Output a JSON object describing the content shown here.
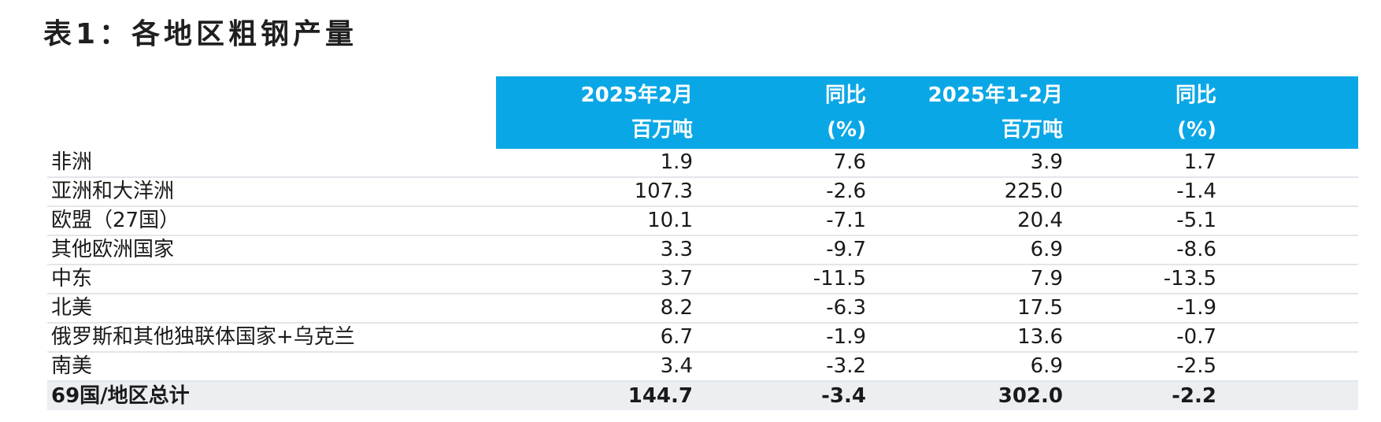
{
  "title": "表1：各地区粗钢产量",
  "header": {
    "col1": [
      "2025年2月",
      "百万吨"
    ],
    "col2": [
      "同比",
      "(%)"
    ],
    "col3": [
      "2025年1-2月",
      "百万吨"
    ],
    "col4": [
      "同比",
      "(%)"
    ]
  },
  "rows": [
    {
      "label": "非洲",
      "feb": "1.9",
      "feb_yoy": "7.6",
      "jan_feb": "3.9",
      "jan_feb_yoy": "1.7"
    },
    {
      "label": "亚洲和大洋洲",
      "feb": "107.3",
      "feb_yoy": "-2.6",
      "jan_feb": "225.0",
      "jan_feb_yoy": "-1.4"
    },
    {
      "label": "欧盟（27国）",
      "feb": "10.1",
      "feb_yoy": "-7.1",
      "jan_feb": "20.4",
      "jan_feb_yoy": "-5.1"
    },
    {
      "label": "其他欧洲国家",
      "feb": "3.3",
      "feb_yoy": "-9.7",
      "jan_feb": "6.9",
      "jan_feb_yoy": "-8.6"
    },
    {
      "label": "中东",
      "feb": "3.7",
      "feb_yoy": "-11.5",
      "jan_feb": "7.9",
      "jan_feb_yoy": "-13.5"
    },
    {
      "label": "北美",
      "feb": "8.2",
      "feb_yoy": "-6.3",
      "jan_feb": "17.5",
      "jan_feb_yoy": "-1.9"
    },
    {
      "label": "俄罗斯和其他独联体国家+乌克兰",
      "feb": "6.7",
      "feb_yoy": "-1.9",
      "jan_feb": "13.6",
      "jan_feb_yoy": "-0.7"
    },
    {
      "label": "南美",
      "feb": "3.4",
      "feb_yoy": "-3.2",
      "jan_feb": "6.9",
      "jan_feb_yoy": "-2.5"
    }
  ],
  "total": {
    "label": "69国/地区总计",
    "feb": "144.7",
    "feb_yoy": "-3.4",
    "jan_feb": "302.0",
    "jan_feb_yoy": "-2.2"
  },
  "colors": {
    "header_band": "#0aa7e6",
    "total_row_bg": "#eceff2",
    "row_divider": "#e2e6ea"
  }
}
